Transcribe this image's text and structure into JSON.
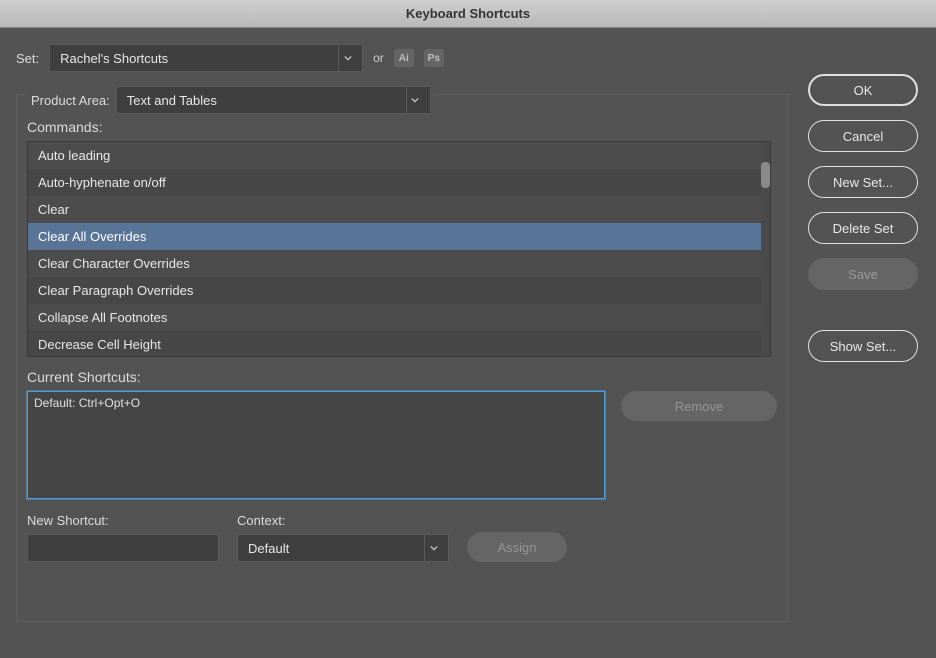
{
  "window": {
    "title": "Keyboard Shortcuts"
  },
  "set_row": {
    "label": "Set:",
    "value": "Rachel's Shortcuts",
    "or": "or",
    "app_icons": [
      "Ai",
      "Ps"
    ]
  },
  "product_area": {
    "label": "Product Area:",
    "value": "Text and Tables"
  },
  "commands": {
    "label": "Commands:",
    "items": [
      {
        "label": "Auto leading",
        "selected": false
      },
      {
        "label": "Auto-hyphenate on/off",
        "selected": false
      },
      {
        "label": "Clear",
        "selected": false
      },
      {
        "label": "Clear All Overrides",
        "selected": true
      },
      {
        "label": "Clear Character Overrides",
        "selected": false
      },
      {
        "label": "Clear Paragraph Overrides",
        "selected": false
      },
      {
        "label": "Collapse All Footnotes",
        "selected": false
      },
      {
        "label": "Decrease Cell Height",
        "selected": false
      }
    ]
  },
  "current_shortcuts": {
    "label": "Current Shortcuts:",
    "value": "Default: Ctrl+Opt+O",
    "remove_label": "Remove"
  },
  "new_shortcut": {
    "label": "New Shortcut:",
    "context_label": "Context:",
    "context_value": "Default",
    "assign_label": "Assign"
  },
  "side_buttons": {
    "ok": "OK",
    "cancel": "Cancel",
    "new_set": "New Set...",
    "delete_set": "Delete Set",
    "save": "Save",
    "show_set": "Show Set..."
  },
  "colors": {
    "selected_row": "#587497",
    "focus_border": "#4da0d6"
  }
}
